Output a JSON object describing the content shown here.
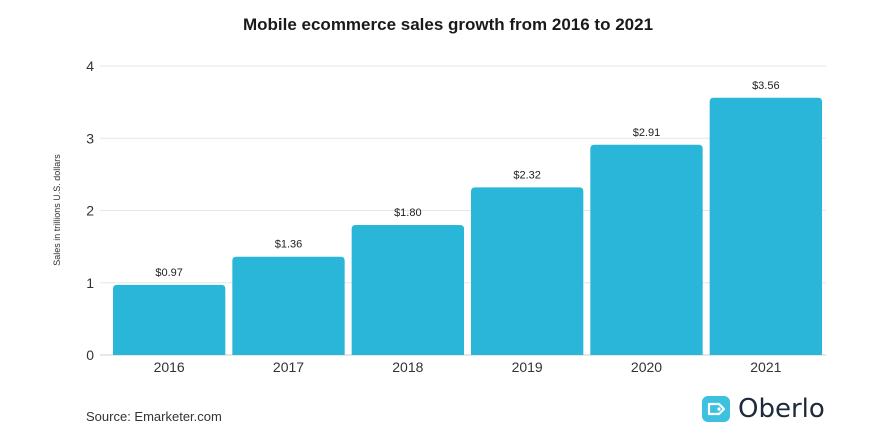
{
  "chart_data": {
    "type": "bar",
    "title": "Mobile ecommerce sales growth from 2016 to 2021",
    "ylabel": "Sales in trillions U.S. dollars",
    "xlabel": "",
    "categories": [
      "2016",
      "2017",
      "2018",
      "2019",
      "2020",
      "2021"
    ],
    "values": [
      0.97,
      1.36,
      1.8,
      2.32,
      2.91,
      3.56
    ],
    "data_labels": [
      "$0.97",
      "$1.36",
      "$1.80",
      "$2.32",
      "$2.91",
      "$3.56"
    ],
    "ylim": [
      0,
      4
    ],
    "yticks": [
      0,
      1,
      2,
      3,
      4
    ],
    "grid": true,
    "bar_color": "#29b6d8"
  },
  "source": "Source: Emarketer.com",
  "brand": {
    "name": "Oberlo",
    "logo_icon": "tag-icon",
    "logo_color": "#3cc1df"
  }
}
